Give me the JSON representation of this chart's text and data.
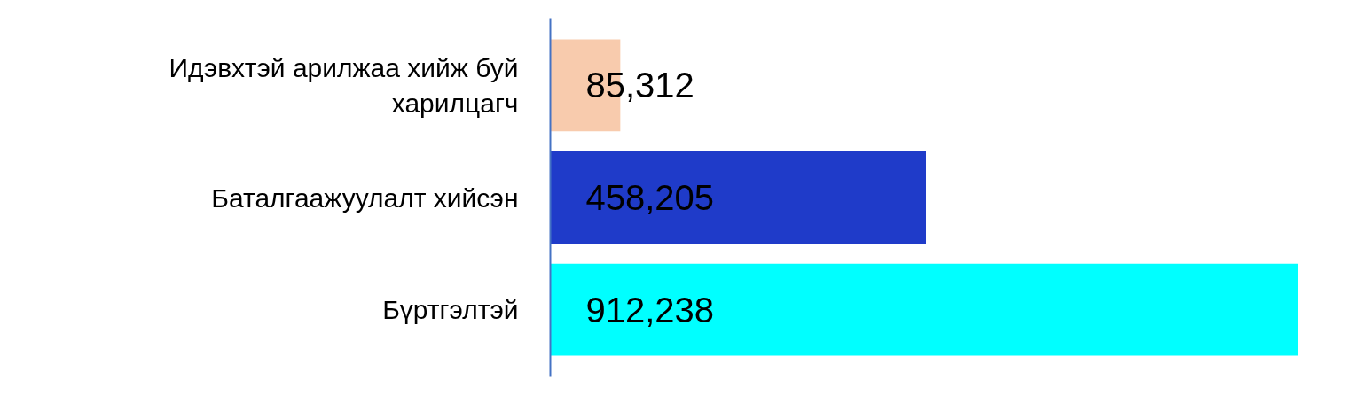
{
  "chart_data": {
    "type": "bar",
    "orientation": "horizontal",
    "categories": [
      "Идэвхтэй арилжаа хийж буй харилцагч",
      "Баталгаажуулалт хийсэн",
      "Бүртгэлтэй"
    ],
    "values": [
      85312,
      458205,
      912238
    ],
    "colors": [
      "#f8cbad",
      "#1f3bc9",
      "#00ffff"
    ],
    "data_labels": true,
    "value_labels": [
      "85,312",
      "458,205",
      "912,238"
    ],
    "grid": false
  }
}
